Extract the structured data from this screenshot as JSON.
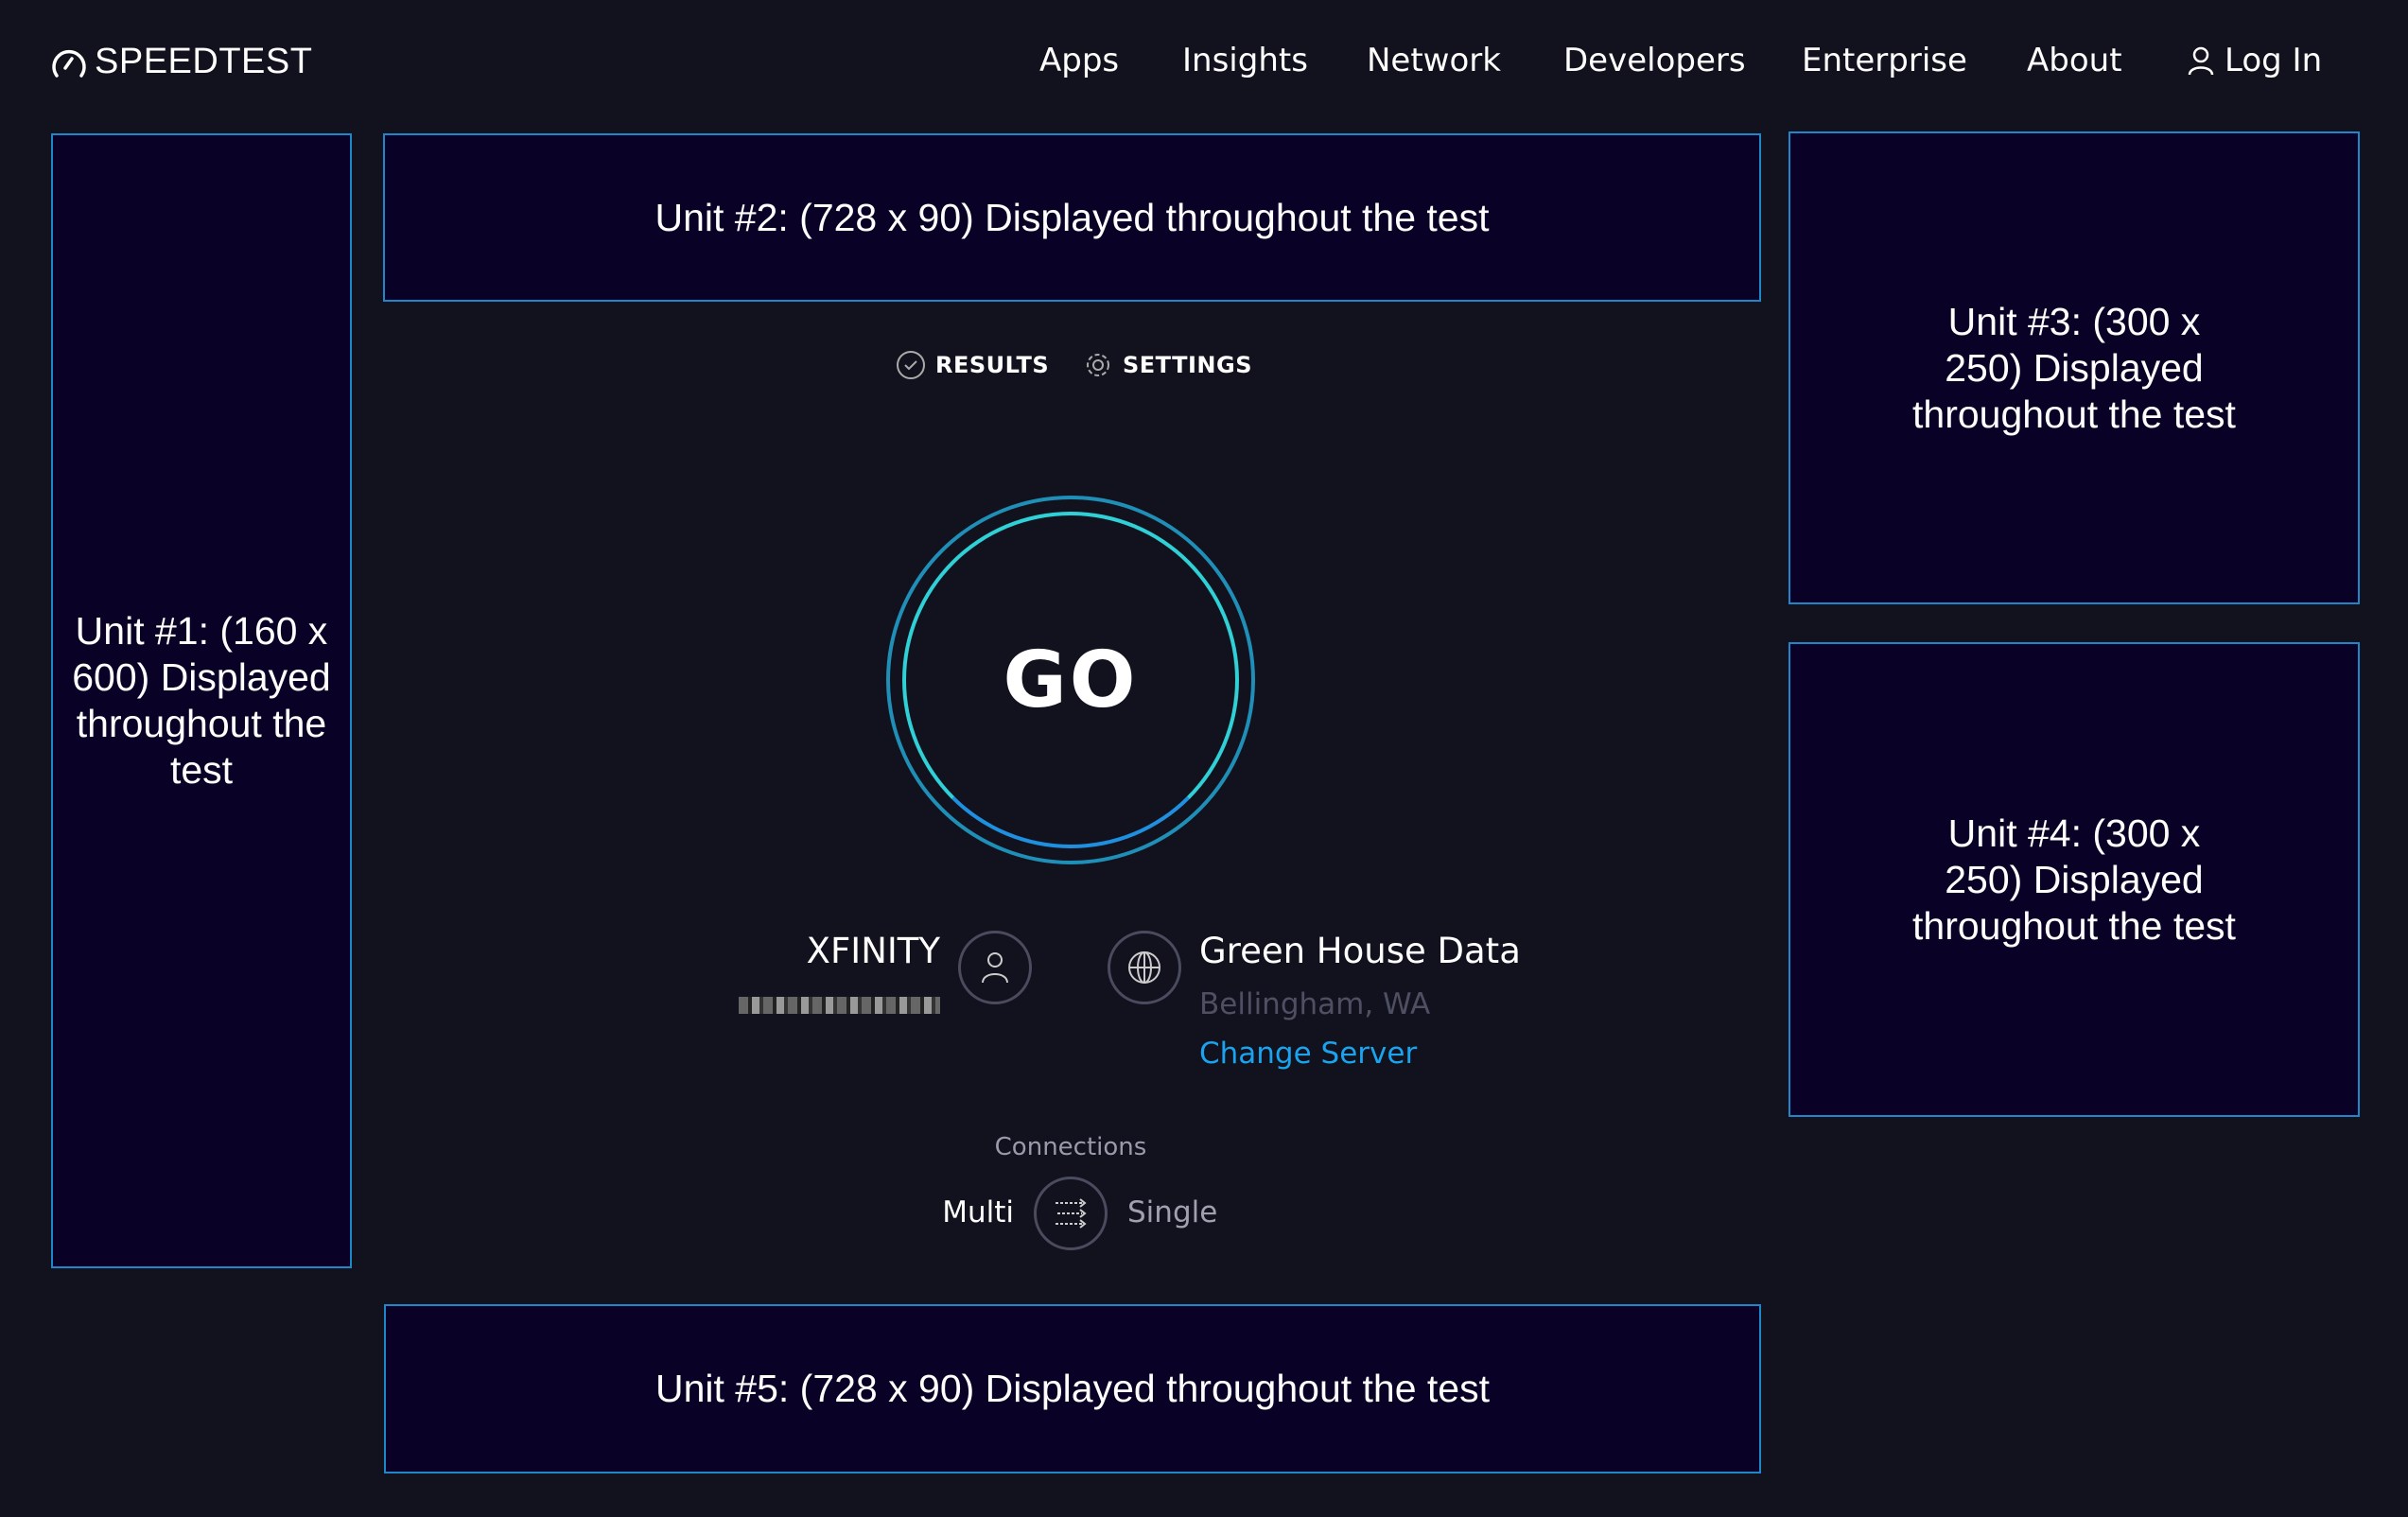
{
  "brand": {
    "name": "SPEEDTEST",
    "icon": "speedometer-icon"
  },
  "nav": {
    "items": [
      "Apps",
      "Insights",
      "Network",
      "Developers",
      "Enterprise",
      "About"
    ],
    "login": "Log In"
  },
  "ads": {
    "unit1": "Unit #1: (160 x 600) Displayed throughout the test",
    "unit2": "Unit #2: (728 x 90) Displayed throughout the test",
    "unit3": "Unit #3: (300 x 250) Displayed throughout the test",
    "unit4": "Unit #4: (300 x 250) Displayed throughout the test",
    "unit5": "Unit #5: (728 x 90) Displayed throughout the test"
  },
  "tabs": {
    "results": "RESULTS",
    "settings": "SETTINGS"
  },
  "go": {
    "label": "GO"
  },
  "isp": {
    "name": "XFINITY",
    "icon": "user-icon"
  },
  "server": {
    "name": "Green House Data",
    "location": "Bellingham, WA",
    "change": "Change Server",
    "icon": "globe-icon"
  },
  "connections": {
    "label": "Connections",
    "multi": "Multi",
    "single": "Single"
  },
  "colors": {
    "background": "#11121d",
    "ad_border": "#1e86c9",
    "link": "#1aa3ee",
    "ring_outer": "#1f8fb8",
    "ring_inner": "#2fd8d0"
  }
}
